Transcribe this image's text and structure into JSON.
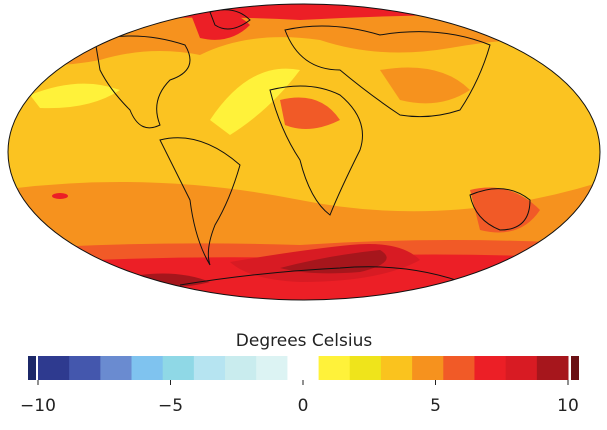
{
  "colorbar": {
    "title": "Degrees Celsius",
    "limits": [
      -10,
      10
    ],
    "colors": [
      "#2e3a8f",
      "#4457ad",
      "#6a8bd0",
      "#7fc3ef",
      "#8fd8e6",
      "#b6e4f1",
      "#c9ecee",
      "#dcf3f3",
      "#ffffff",
      "#fff23a",
      "#efe41b",
      "#fac31e",
      "#f6921e",
      "#f15a27",
      "#ec1f26",
      "#d81b23",
      "#a6161c"
    ],
    "under_color": "#1c2868",
    "over_color": "#6b1014",
    "ticks": [
      {
        "value": -10,
        "label": "−10"
      },
      {
        "value": -5,
        "label": "−5"
      },
      0,
      5,
      10
    ]
  }
}
